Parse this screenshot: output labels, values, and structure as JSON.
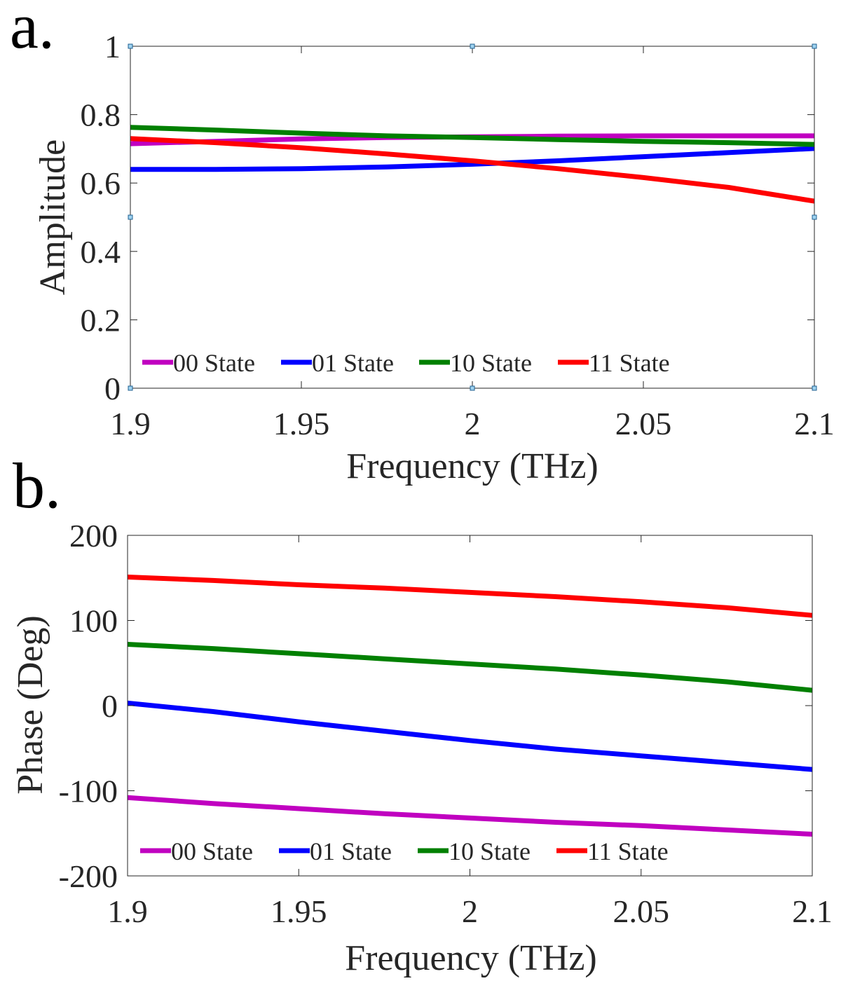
{
  "figure": {
    "panel_a_label": "a.",
    "panel_b_label": "b."
  },
  "chart_data": [
    {
      "type": "line",
      "title": "",
      "xlabel": "Frequency (THz)",
      "ylabel": "Amplitude",
      "xlim": [
        1.9,
        2.1
      ],
      "ylim": [
        0,
        1
      ],
      "xticks": [
        1.9,
        1.95,
        2,
        2.05,
        2.1
      ],
      "xtick_labels": [
        "1.9",
        "1.95",
        "2",
        "2.05",
        "2.1"
      ],
      "yticks": [
        0,
        0.2,
        0.4,
        0.6,
        0.8,
        1
      ],
      "ytick_labels": [
        "0",
        "0.2",
        "0.4",
        "0.6",
        "0.8",
        "1"
      ],
      "grid": false,
      "legend_position": "bottom",
      "x": [
        1.9,
        1.925,
        1.95,
        1.975,
        2.0,
        2.025,
        2.05,
        2.075,
        2.1
      ],
      "series": [
        {
          "name": "00 State",
          "color": "#c000c0",
          "values": [
            0.715,
            0.722,
            0.729,
            0.733,
            0.735,
            0.737,
            0.738,
            0.738,
            0.738
          ]
        },
        {
          "name": "01 State",
          "color": "#0000ff",
          "values": [
            0.64,
            0.64,
            0.642,
            0.647,
            0.655,
            0.665,
            0.677,
            0.689,
            0.701
          ]
        },
        {
          "name": "10 State",
          "color": "#008000",
          "values": [
            0.763,
            0.755,
            0.746,
            0.738,
            0.733,
            0.727,
            0.722,
            0.718,
            0.713
          ]
        },
        {
          "name": "11 State",
          "color": "#ff0000",
          "values": [
            0.73,
            0.718,
            0.703,
            0.685,
            0.665,
            0.642,
            0.616,
            0.587,
            0.547
          ]
        }
      ]
    },
    {
      "type": "line",
      "title": "",
      "xlabel": "Frequency (THz)",
      "ylabel": "Phase (Deg)",
      "xlim": [
        1.9,
        2.1
      ],
      "ylim": [
        -200,
        200
      ],
      "xticks": [
        1.9,
        1.95,
        2,
        2.05,
        2.1
      ],
      "xtick_labels": [
        "1.9",
        "1.95",
        "2",
        "2.05",
        "2.1"
      ],
      "yticks": [
        -200,
        -100,
        0,
        100,
        200
      ],
      "ytick_labels": [
        "-200",
        "-100",
        "0",
        "100",
        "200"
      ],
      "grid": false,
      "legend_position": "bottom",
      "x": [
        1.9,
        1.925,
        1.95,
        1.975,
        2.0,
        2.025,
        2.05,
        2.075,
        2.1
      ],
      "series": [
        {
          "name": "00 State",
          "color": "#c000c0",
          "values": [
            -108,
            -115,
            -121,
            -127,
            -132,
            -137,
            -141,
            -146,
            -151
          ]
        },
        {
          "name": "01 State",
          "color": "#0000ff",
          "values": [
            3,
            -7,
            -19,
            -30,
            -41,
            -51,
            -59,
            -67,
            -75
          ]
        },
        {
          "name": "10 State",
          "color": "#008000",
          "values": [
            72,
            67,
            61,
            55,
            49,
            43,
            36,
            28,
            18
          ]
        },
        {
          "name": "11 State",
          "color": "#ff0000",
          "values": [
            151,
            147,
            142,
            138,
            133,
            128,
            122,
            115,
            106
          ]
        }
      ]
    }
  ]
}
